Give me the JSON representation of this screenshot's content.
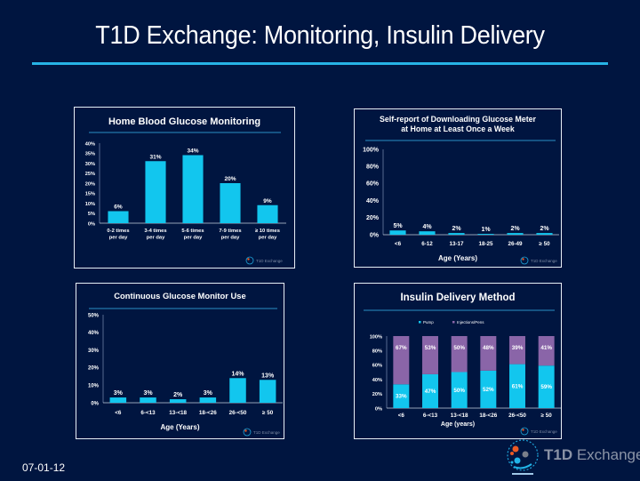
{
  "slide": {
    "title": "T1D Exchange: Monitoring, Insulin Delivery",
    "date": "07-01-12",
    "logo": {
      "strong": "T1D",
      "light": " Exchange"
    },
    "panel_watermark": "T1D Exchange",
    "colors": {
      "background": "#001540",
      "accent": "#27b3e6",
      "bar": "#12c6ee",
      "purple": "#8a65a8"
    }
  },
  "chart_data": [
    {
      "type": "bar",
      "title": "Home Blood Glucose Monitoring",
      "categories": [
        "0-2 times\nper day",
        "3-4 times\nper day",
        "5-6 times\nper day",
        "7-9 times\nper day",
        "≥ 10 times\nper day"
      ],
      "values": [
        6,
        31,
        34,
        20,
        9
      ],
      "data_labels": [
        "6%",
        "31%",
        "34%",
        "20%",
        "9%"
      ],
      "xlabel": "",
      "ylabel": "",
      "ylim": [
        0,
        40
      ],
      "yticks": [
        "0%",
        "5%",
        "10%",
        "15%",
        "20%",
        "25%",
        "30%",
        "35%",
        "40%"
      ],
      "grid": false
    },
    {
      "type": "bar",
      "title": "Self-report of Downloading Glucose Meter\nat Home at Least Once a Week",
      "categories": [
        "<6",
        "6-12",
        "13-17",
        "18-25",
        "26-49",
        "≥ 50"
      ],
      "values": [
        5,
        4,
        2,
        1,
        2,
        2
      ],
      "data_labels": [
        "5%",
        "4%",
        "2%",
        "1%",
        "2%",
        "2%"
      ],
      "xlabel": "Age (Years)",
      "ylabel": "",
      "ylim": [
        0,
        100
      ],
      "yticks": [
        "0%",
        "20%",
        "40%",
        "60%",
        "80%",
        "100%"
      ],
      "grid": false
    },
    {
      "type": "bar",
      "title": "Continuous Glucose Monitor Use",
      "categories": [
        "<6",
        "6-<13",
        "13-<18",
        "18-<26",
        "26-<50",
        "≥ 50"
      ],
      "values": [
        3,
        3,
        2,
        3,
        14,
        13
      ],
      "data_labels": [
        "3%",
        "3%",
        "2%",
        "3%",
        "14%",
        "13%"
      ],
      "xlabel": "Age (Years)",
      "ylabel": "",
      "ylim": [
        0,
        50
      ],
      "yticks": [
        "0%",
        "10%",
        "20%",
        "30%",
        "40%",
        "50%"
      ],
      "grid": false
    },
    {
      "type": "bar",
      "stacked": true,
      "title": "Insulin Delivery Method",
      "categories": [
        "<6",
        "6-<13",
        "13-<18",
        "18-<26",
        "26-<50",
        "≥ 50"
      ],
      "series": [
        {
          "name": "Pump",
          "values": [
            33,
            47,
            50,
            52,
            61,
            59
          ],
          "labels": [
            "33%",
            "47%",
            "50%",
            "52%",
            "61%",
            "59%"
          ]
        },
        {
          "name": "Injections/Pens",
          "values": [
            67,
            53,
            50,
            48,
            39,
            41
          ],
          "labels": [
            "67%",
            "53%",
            "50%",
            "48%",
            "39%",
            "41%"
          ]
        }
      ],
      "legend": "top-center",
      "xlabel": "Age (years)",
      "ylabel": "",
      "ylim": [
        0,
        100
      ],
      "yticks": [
        "0%",
        "20%",
        "40%",
        "60%",
        "80%",
        "100%"
      ],
      "grid": false
    }
  ]
}
